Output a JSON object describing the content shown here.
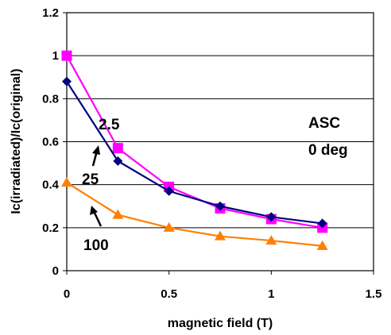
{
  "chart_data": {
    "type": "line",
    "xlabel": "magnetic field (T)",
    "ylabel": "Ic(irradiated)/Ic(original)",
    "xlim": [
      0,
      1.5
    ],
    "ylim": [
      0,
      1.2
    ],
    "x_ticks": [
      "0",
      "0.5",
      "1",
      "1.5"
    ],
    "y_ticks": [
      "0",
      "0.2",
      "0.4",
      "0.6",
      "0.8",
      "1",
      "1.2"
    ],
    "grid": "horizontal",
    "legend": "none",
    "series": [
      {
        "color": "#ff00ff",
        "line_color": "#ff00ff",
        "marker": "square",
        "x": [
          0,
          0.25,
          0.5,
          0.75,
          1.0,
          1.25
        ],
        "y": [
          1.0,
          0.57,
          0.39,
          0.29,
          0.24,
          0.2
        ]
      },
      {
        "color": "#000080",
        "line_color": "#000080",
        "marker": "diamond",
        "x": [
          0,
          0.25,
          0.5,
          0.75,
          1.0,
          1.25
        ],
        "y": [
          0.88,
          0.51,
          0.37,
          0.3,
          0.25,
          0.22
        ]
      },
      {
        "color": "#ff8000",
        "line_color": "#ff8000",
        "marker": "triangle",
        "x": [
          0,
          0.25,
          0.5,
          0.75,
          1.0,
          1.25
        ],
        "y": [
          0.41,
          0.26,
          0.2,
          0.16,
          0.14,
          0.115
        ]
      }
    ],
    "annotations": [
      {
        "text": "2.5"
      },
      {
        "text": "25"
      },
      {
        "text": "100"
      },
      {
        "text": "ASC"
      },
      {
        "text": "0 deg"
      }
    ]
  }
}
